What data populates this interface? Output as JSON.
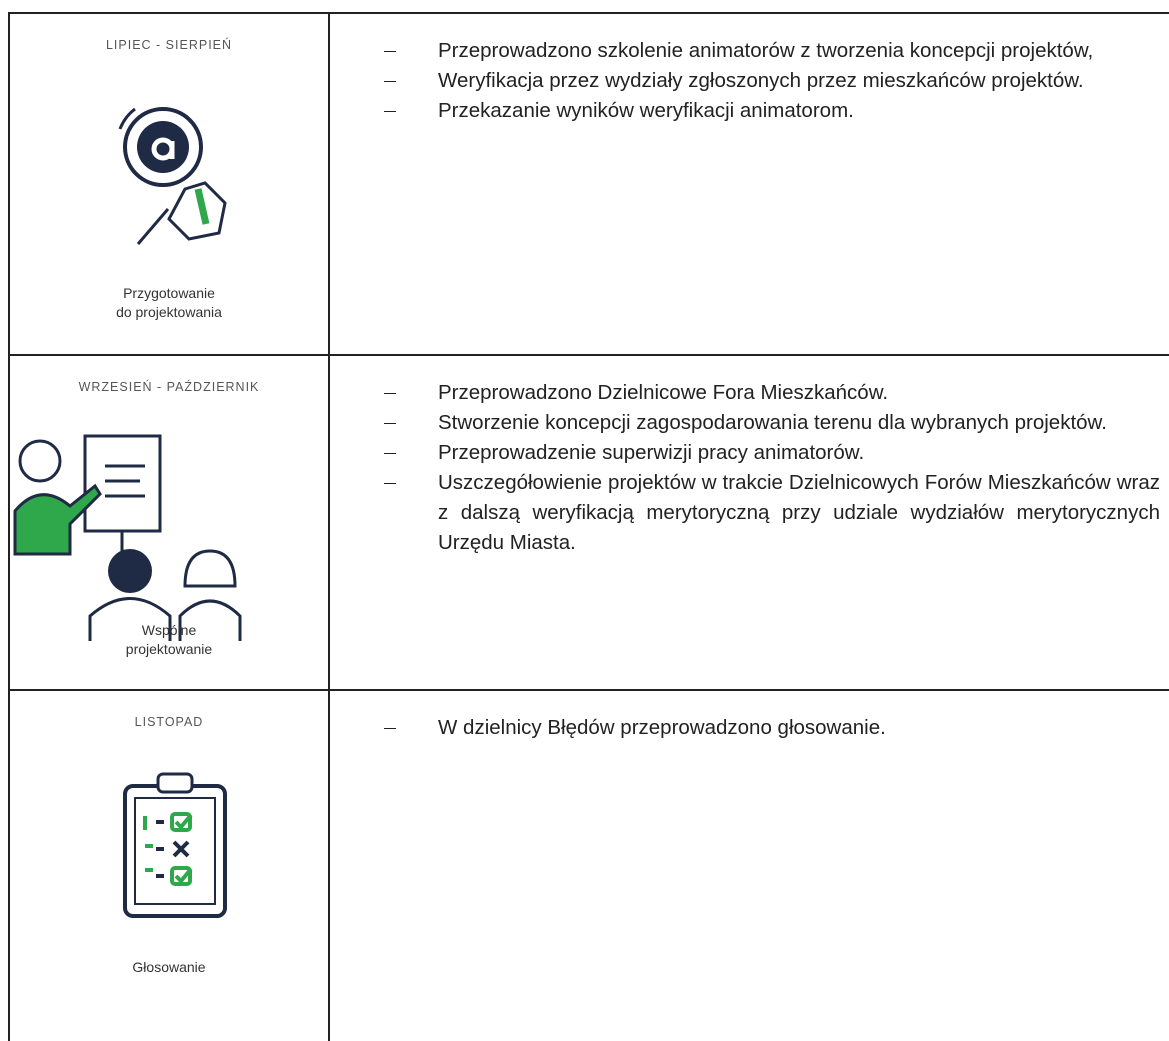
{
  "rows": [
    {
      "period": "LIPIEC - SIERPIEŃ",
      "caption": [
        "Przygotowanie",
        "do projektowania"
      ],
      "items": [
        "Przeprowadzono szkolenie animatorów z tworzenia koncepcji projektów,",
        "Weryfikacja przez wydziały zgłoszonych przez mieszkańców projektów.",
        "Przekazanie wyników weryfikacji animatorom."
      ]
    },
    {
      "period": "WRZESIEŃ - PAŹDZIERNIK",
      "caption": [
        "Wspólne",
        "projektowanie"
      ],
      "items": [
        "Przeprowadzono Dzielnicowe Fora Mieszkańców.",
        "Stworzenie koncepcji zagospodarowania terenu dla wybranych projektów.",
        "Przeprowadzenie superwizji pracy animatorów.",
        "Uszczegółowienie projektów w trakcie Dzielnicowych Forów Mieszkańców wraz z dalszą weryfikacją merytoryczną przy udziale wydziałów merytorycznych Urzędu Miasta."
      ]
    },
    {
      "period": "LISTOPAD",
      "caption": [
        "Głosowanie"
      ],
      "items": [
        "W dzielnicy Błędów przeprowadzono głosowanie."
      ]
    }
  ]
}
